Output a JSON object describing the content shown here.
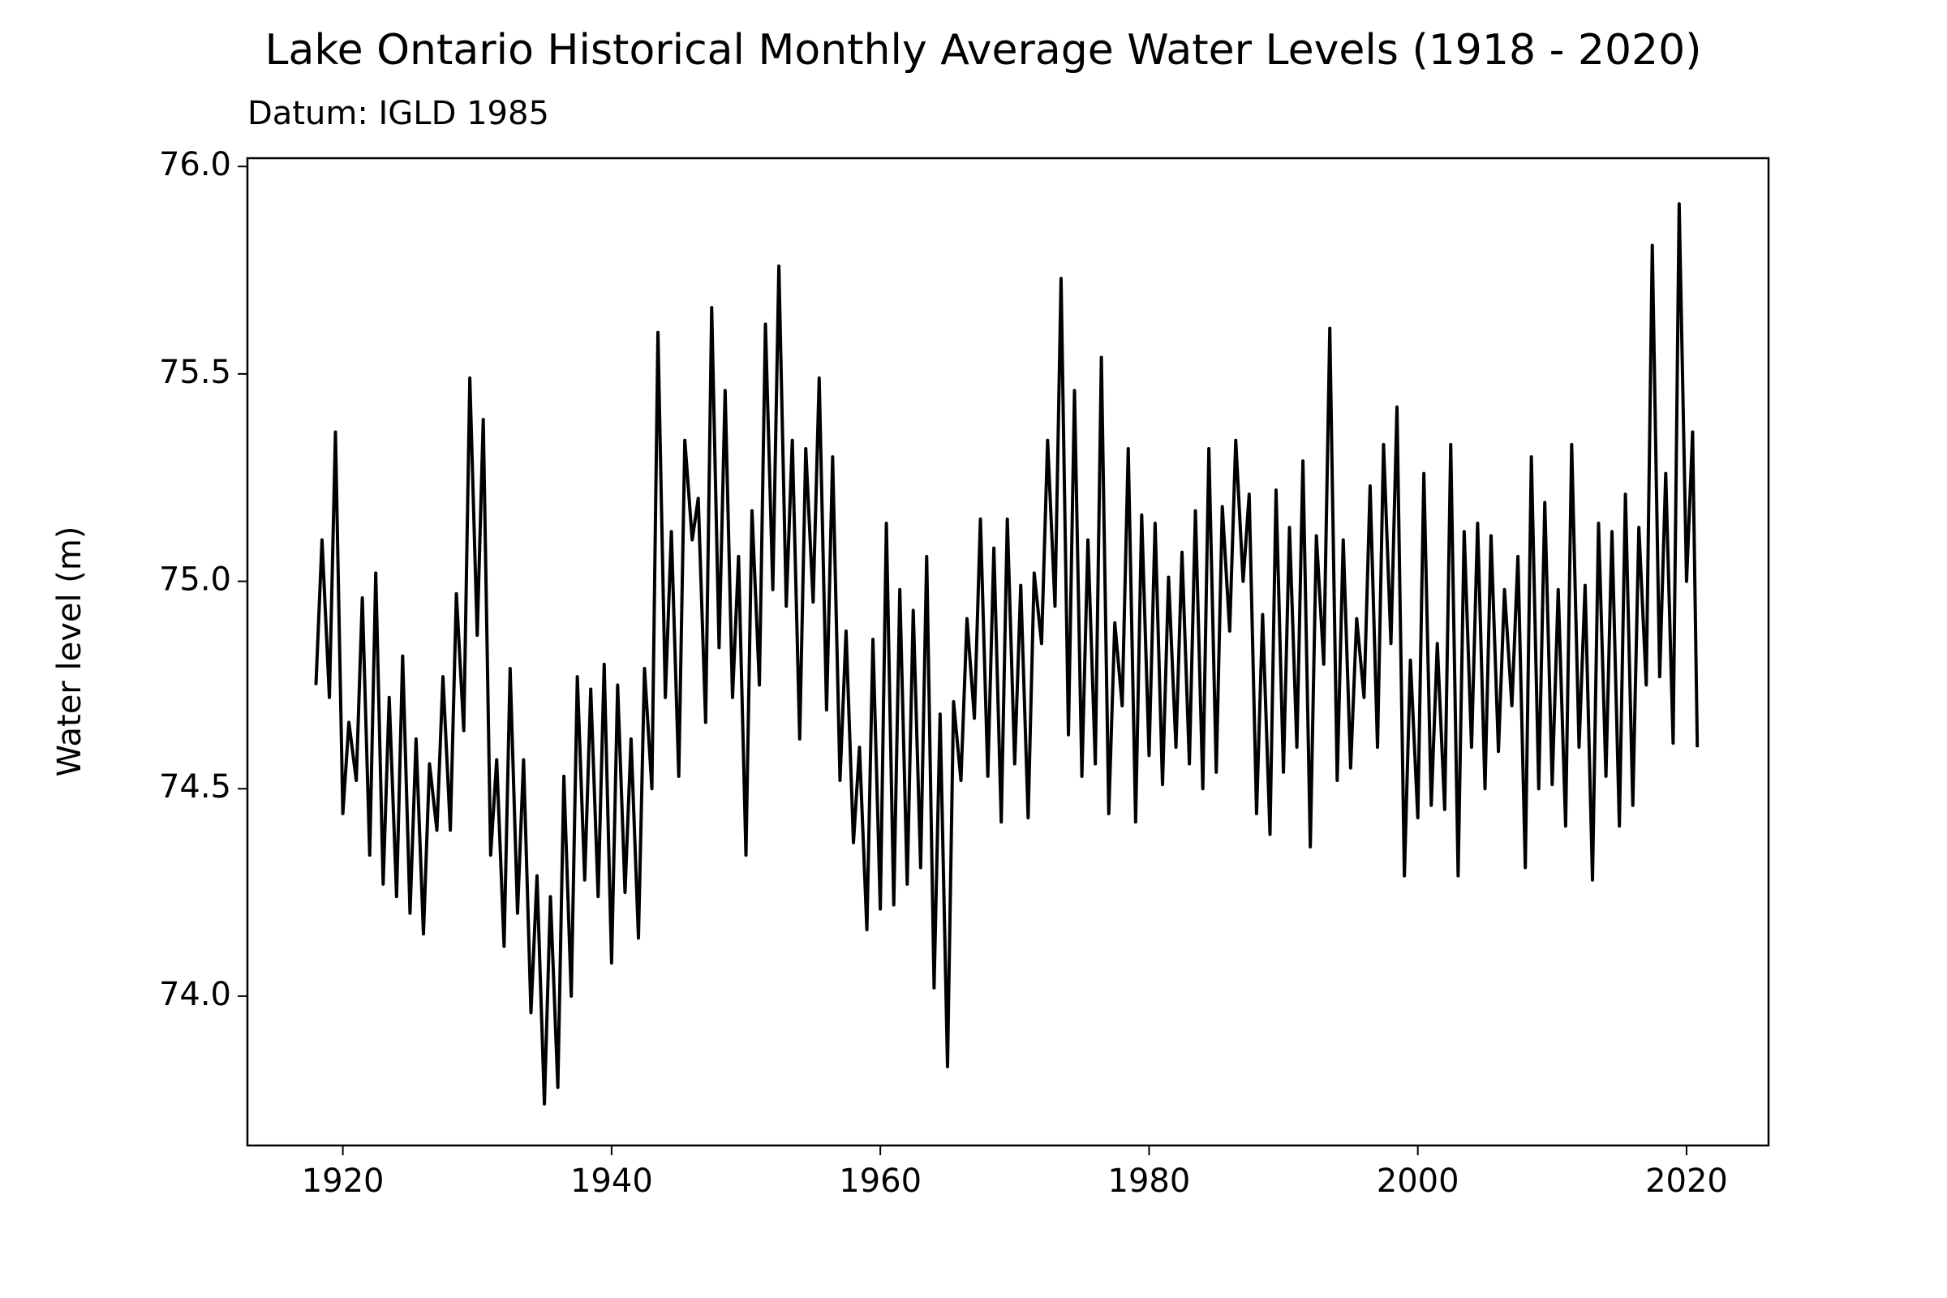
{
  "chart_data": {
    "type": "line",
    "title": "Lake Ontario Historical Monthly Average Water Levels (1918 - 2020)",
    "subtitle": "Datum: IGLD 1985",
    "y_label": "Water level (m)",
    "xlim": [
      1912.9,
      2026.1
    ],
    "ylim": [
      73.64,
      76.02
    ],
    "xticks": [
      1920,
      1940,
      1960,
      1980,
      2000,
      2020
    ],
    "yticks": [
      {
        "value": 74,
        "label": "74.0"
      },
      74.5,
      {
        "value": 75,
        "label": "75.0"
      },
      75.5,
      {
        "value": 76,
        "label": "76.0"
      }
    ],
    "series": [
      {
        "color": "#000000",
        "x": [
          1918,
          1918.45,
          1919,
          1919.45,
          1920,
          1920.45,
          1921,
          1921.45,
          1922,
          1922.45,
          1923,
          1923.45,
          1924,
          1924.45,
          1925,
          1925.45,
          1926,
          1926.45,
          1927,
          1927.45,
          1928,
          1928.45,
          1929,
          1929.45,
          1930,
          1930.45,
          1931,
          1931.45,
          1932,
          1932.45,
          1933,
          1933.45,
          1934,
          1934.45,
          1935,
          1935.45,
          1936,
          1936.45,
          1937,
          1937.45,
          1938,
          1938.45,
          1939,
          1939.45,
          1940,
          1940.45,
          1941,
          1941.45,
          1942,
          1942.45,
          1943,
          1943.45,
          1944,
          1944.45,
          1945,
          1945.45,
          1946,
          1946.45,
          1947,
          1947.45,
          1948,
          1948.45,
          1949,
          1949.45,
          1950,
          1950.45,
          1951,
          1951.45,
          1952,
          1952.45,
          1953,
          1953.45,
          1954,
          1954.45,
          1955,
          1955.45,
          1956,
          1956.45,
          1957,
          1957.45,
          1958,
          1958.45,
          1959,
          1959.45,
          1960,
          1960.45,
          1961,
          1961.45,
          1962,
          1962.45,
          1963,
          1963.45,
          1964,
          1964.45,
          1965,
          1965.45,
          1966,
          1966.45,
          1967,
          1967.45,
          1968,
          1968.45,
          1969,
          1969.45,
          1970,
          1970.45,
          1971,
          1971.45,
          1972,
          1972.45,
          1973,
          1973.45,
          1974,
          1974.45,
          1975,
          1975.45,
          1976,
          1976.45,
          1977,
          1977.45,
          1978,
          1978.45,
          1979,
          1979.45,
          1980,
          1980.45,
          1981,
          1981.45,
          1982,
          1982.45,
          1983,
          1983.45,
          1984,
          1984.45,
          1985,
          1985.45,
          1986,
          1986.45,
          1987,
          1987.45,
          1988,
          1988.45,
          1989,
          1989.45,
          1990,
          1990.45,
          1991,
          1991.45,
          1992,
          1992.45,
          1993,
          1993.45,
          1994,
          1994.45,
          1995,
          1995.45,
          1996,
          1996.45,
          1997,
          1997.45,
          1998,
          1998.45,
          1999,
          1999.45,
          2000,
          2000.45,
          2001,
          2001.45,
          2002,
          2002.45,
          2003,
          2003.45,
          2004,
          2004.45,
          2005,
          2005.45,
          2006,
          2006.45,
          2007,
          2007.45,
          2008,
          2008.45,
          2009,
          2009.45,
          2010,
          2010.45,
          2011,
          2011.45,
          2012,
          2012.45,
          2013,
          2013.45,
          2014,
          2014.45,
          2015,
          2015.45,
          2016,
          2016.45,
          2017,
          2017.45,
          2018,
          2018.45,
          2019,
          2019.45,
          2020,
          2020.45,
          2020.8
        ],
        "values": [
          74.75,
          75.1,
          74.72,
          75.36,
          74.44,
          74.66,
          74.52,
          74.96,
          74.34,
          75.02,
          74.27,
          74.72,
          74.24,
          74.82,
          74.2,
          74.62,
          74.15,
          74.56,
          74.4,
          74.77,
          74.4,
          74.97,
          74.64,
          75.49,
          74.87,
          75.39,
          74.34,
          74.57,
          74.12,
          74.79,
          74.2,
          74.57,
          73.96,
          74.29,
          73.74,
          74.24,
          73.78,
          74.53,
          74.0,
          74.77,
          74.28,
          74.74,
          74.24,
          74.8,
          74.08,
          74.75,
          74.25,
          74.62,
          74.14,
          74.79,
          74.5,
          75.6,
          74.72,
          75.12,
          74.53,
          75.34,
          75.1,
          75.2,
          74.66,
          75.66,
          74.84,
          75.46,
          74.72,
          75.06,
          74.34,
          75.17,
          74.75,
          75.62,
          74.98,
          75.76,
          74.94,
          75.34,
          74.62,
          75.32,
          74.95,
          75.49,
          74.69,
          75.3,
          74.52,
          74.88,
          74.37,
          74.6,
          74.16,
          74.86,
          74.21,
          75.14,
          74.22,
          74.98,
          74.27,
          74.93,
          74.31,
          75.06,
          74.02,
          74.68,
          73.83,
          74.71,
          74.52,
          74.91,
          74.67,
          75.15,
          74.53,
          75.08,
          74.42,
          75.15,
          74.56,
          74.99,
          74.43,
          75.02,
          74.85,
          75.34,
          74.94,
          75.73,
          74.63,
          75.46,
          74.53,
          75.1,
          74.56,
          75.54,
          74.44,
          74.9,
          74.7,
          75.32,
          74.42,
          75.16,
          74.58,
          75.14,
          74.51,
          75.01,
          74.6,
          75.07,
          74.56,
          75.17,
          74.5,
          75.32,
          74.54,
          75.18,
          74.88,
          75.34,
          75.0,
          75.21,
          74.44,
          74.92,
          74.39,
          75.22,
          74.54,
          75.13,
          74.6,
          75.29,
          74.36,
          75.11,
          74.8,
          75.61,
          74.52,
          75.1,
          74.55,
          74.91,
          74.72,
          75.23,
          74.6,
          75.33,
          74.85,
          75.42,
          74.29,
          74.81,
          74.43,
          75.26,
          74.46,
          74.85,
          74.45,
          75.33,
          74.29,
          75.12,
          74.6,
          75.14,
          74.5,
          75.11,
          74.59,
          74.98,
          74.7,
          75.06,
          74.31,
          75.3,
          74.5,
          75.19,
          74.51,
          74.98,
          74.41,
          75.33,
          74.6,
          74.99,
          74.28,
          75.14,
          74.53,
          75.12,
          74.41,
          75.21,
          74.46,
          75.13,
          74.75,
          75.81,
          74.77,
          75.26,
          74.61,
          75.91,
          75.0,
          75.36,
          74.6
        ]
      }
    ]
  }
}
